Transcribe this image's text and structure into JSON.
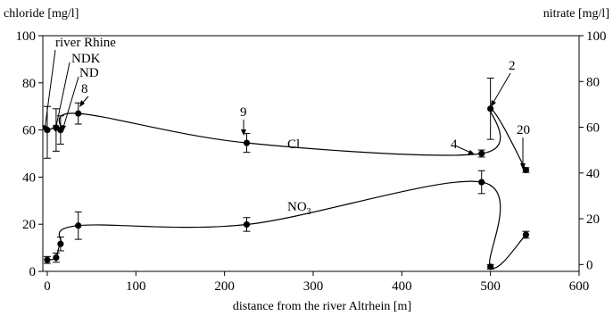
{
  "chart_data": {
    "type": "scatter",
    "xlabel": "distance from the river Altrhein [m]",
    "ylabel_left": "chloride [mg/l]",
    "ylabel_right": "nitrate [mg/l]",
    "xlim": [
      -5,
      600
    ],
    "ylim_left": [
      0,
      100
    ],
    "ylim_right": [
      -3,
      100
    ],
    "x_ticks": [
      0,
      100,
      200,
      300,
      400,
      500,
      600
    ],
    "y_ticks_left": [
      0,
      20,
      40,
      60,
      80,
      100
    ],
    "y_ticks_right": [
      0,
      20,
      40,
      60,
      80,
      100
    ],
    "grid": false,
    "series": [
      {
        "name": "Cl",
        "axis": "left",
        "x": [
          0,
          10,
          15,
          35,
          225,
          490,
          500,
          540
        ],
        "y": [
          60,
          61,
          60,
          67,
          54.5,
          50,
          69,
          43
        ],
        "err_low": [
          12,
          10,
          6,
          4.5,
          4,
          1.5,
          13,
          1
        ],
        "err_high": [
          10,
          8,
          6,
          4.5,
          4,
          1.5,
          13,
          1
        ]
      },
      {
        "name": "NO3",
        "axis": "right",
        "x": [
          0,
          10,
          15,
          35,
          225,
          490,
          500,
          540
        ],
        "y": [
          2,
          3,
          9,
          17,
          17.5,
          36,
          -1,
          13
        ],
        "err_low": [
          1.5,
          2,
          3,
          6,
          3,
          5,
          1,
          1.5
        ],
        "err_high": [
          1.5,
          2,
          3,
          6,
          3,
          5,
          1,
          1.5
        ]
      }
    ],
    "curve_labels": [
      {
        "text": "Cl",
        "series": "Cl"
      },
      {
        "text": "NO",
        "sub": "3",
        "series": "NO3"
      }
    ],
    "annotations": [
      {
        "text": "river Rhine",
        "target": "0"
      },
      {
        "text": "NDK",
        "target": "10"
      },
      {
        "text": "ND",
        "target": "15"
      },
      {
        "text": "8",
        "target": "35"
      },
      {
        "text": "9",
        "target": "225"
      },
      {
        "text": "4",
        "target": "490"
      },
      {
        "text": "2",
        "target": "500"
      },
      {
        "text": "20",
        "target": "540"
      }
    ]
  }
}
